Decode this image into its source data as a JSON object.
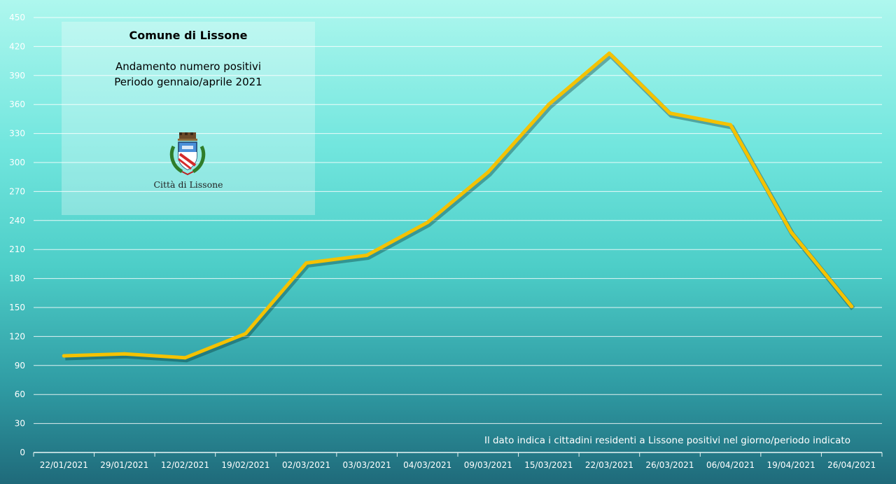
{
  "chart_data": {
    "type": "line",
    "title": "Comune di Lissone",
    "subtitle_lines": [
      "Andamento numero positivi",
      "Periodo gennaio/aprile 2021"
    ],
    "categories": [
      "22/01/2021",
      "29/01/2021",
      "12/02/2021",
      "19/02/2021",
      "02/03/2021",
      "03/03/2021",
      "04/03/2021",
      "09/03/2021",
      "15/03/2021",
      "22/03/2021",
      "26/03/2021",
      "06/04/2021",
      "19/04/2021",
      "26/04/2021"
    ],
    "values": [
      100,
      102,
      98,
      123,
      196,
      204,
      238,
      290,
      360,
      413,
      351,
      339,
      228,
      151
    ],
    "ylim": [
      0,
      450
    ],
    "yticks": [
      0,
      30,
      60,
      90,
      120,
      150,
      180,
      210,
      240,
      270,
      300,
      330,
      360,
      390,
      420,
      450
    ],
    "grid": true,
    "line_color": "#f5c200",
    "annotation": "Il dato indica i cittadini residenti a Lissone positivi nel giorno/periodo indicato"
  },
  "logo": {
    "caption": "Città di Lissone",
    "icon": "coat-of-arms-icon"
  }
}
